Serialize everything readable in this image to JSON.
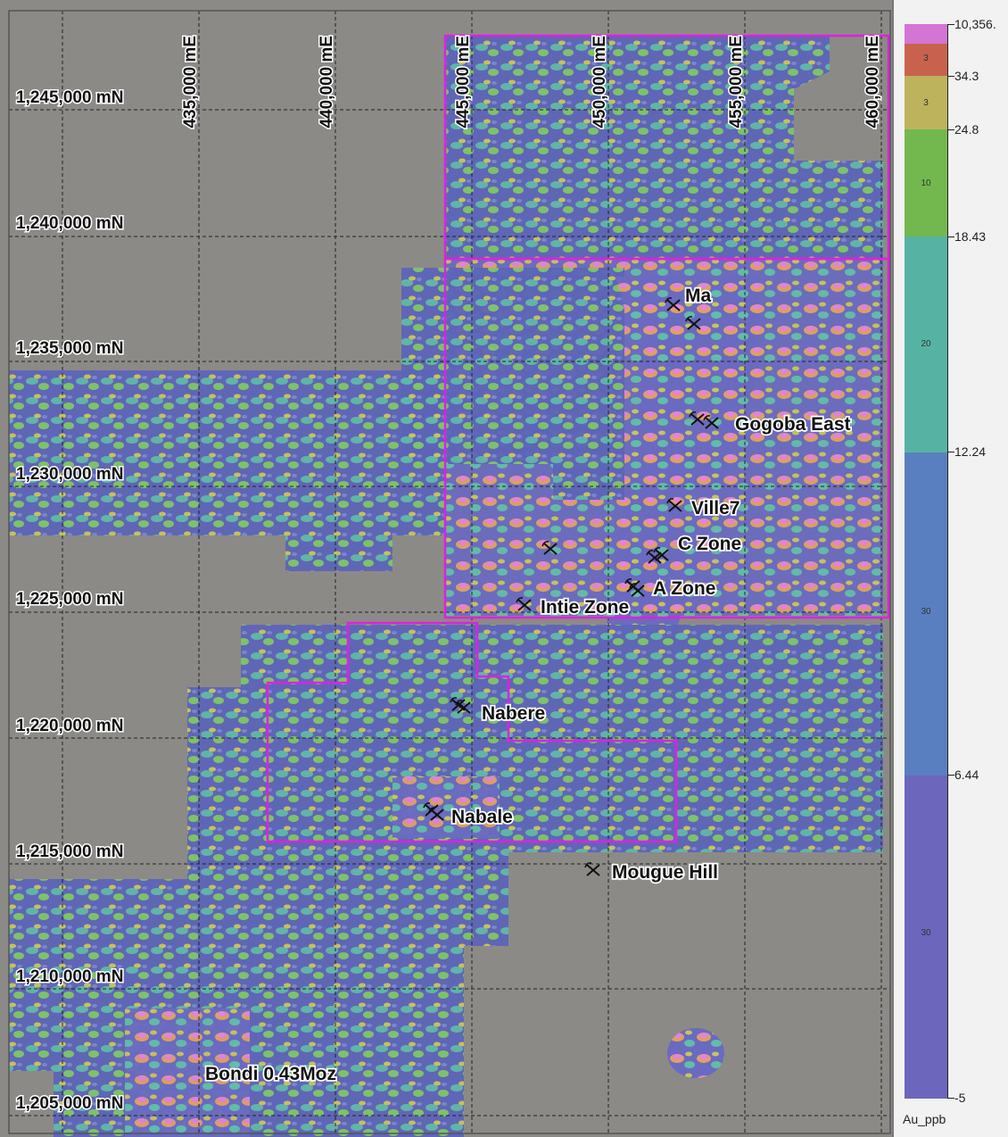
{
  "map": {
    "northing_labels": [
      "1,245,000 mN",
      "1,240,000 mN",
      "1,235,000 mN",
      "1,230,000 mN",
      "1,225,000 mN",
      "1,220,000 mN",
      "1,215,000 mN",
      "1,210,000 mN",
      "1,205,000 mN"
    ],
    "easting_labels": [
      "435,000 mE",
      "440,000 mE",
      "445,000 mE",
      "450,000 mE",
      "455,000 mE",
      "460,000 mE"
    ],
    "deposits": [
      {
        "name": "Ma"
      },
      {
        "name": "Gogoba East"
      },
      {
        "name": "Ville7"
      },
      {
        "name": "C Zone"
      },
      {
        "name": "A Zone"
      },
      {
        "name": "Intie Zone"
      },
      {
        "name": "Nabere"
      },
      {
        "name": "Nabale"
      },
      {
        "name": "Mougue Hill"
      },
      {
        "name": "Bondi   0.43Moz"
      }
    ],
    "colors": {
      "background": "#8c8a86",
      "boundary": "#e020e0",
      "grid": "#222222"
    }
  },
  "legend": {
    "unit": "Au_ppb",
    "values": [
      "10,356.",
      "34.3",
      "24.8",
      "18.43",
      "12.24",
      "6.44",
      "-5"
    ],
    "class_counts": [
      "3",
      "3",
      "10",
      "20",
      "30",
      "30"
    ],
    "colors": [
      "#d474d4",
      "#c8624e",
      "#bdb35c",
      "#72b84e",
      "#56b3a3",
      "#5a7fc0",
      "#6c66bd"
    ]
  }
}
